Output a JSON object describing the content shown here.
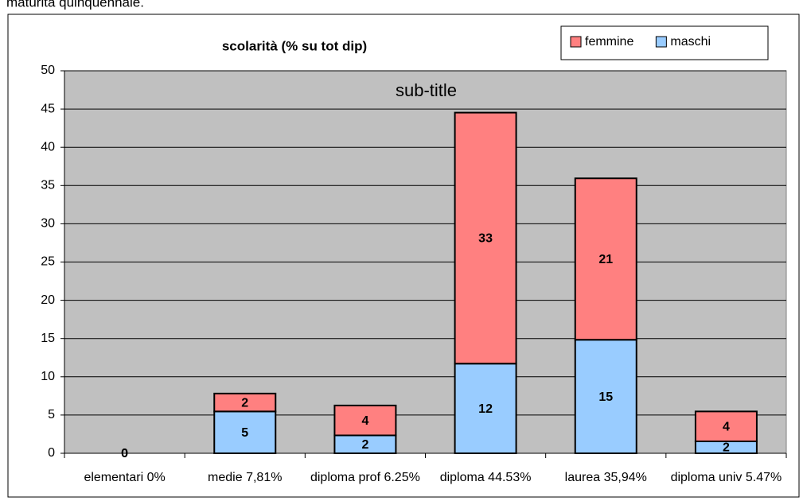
{
  "caption": "maturità quinquennale.",
  "chart_data": {
    "type": "bar",
    "stacked": true,
    "title": "scolarità (% su tot dip)",
    "subtitle": "sub-title",
    "categories": [
      "elementari 0%",
      "medie 7,81%",
      "diploma prof 6.25%",
      "diploma 44.53%",
      "laurea 35,94%",
      "diploma univ 5.47%"
    ],
    "series": [
      {
        "name": "maschi",
        "color": "#99ccff",
        "values": [
          0,
          5.47,
          2.34,
          11.72,
          14.84,
          1.56
        ],
        "value_labels": [
          "0",
          "5",
          "2",
          "12",
          "15",
          "2"
        ]
      },
      {
        "name": "femmine",
        "color": "#ff8080",
        "values": [
          0,
          2.34,
          3.91,
          32.81,
          21.1,
          3.91
        ],
        "value_labels": [
          "0",
          "2",
          "4",
          "33",
          "21",
          "4"
        ]
      }
    ],
    "ylim": [
      0,
      50
    ],
    "yticks": [
      0,
      5,
      10,
      15,
      20,
      25,
      30,
      35,
      40,
      45,
      50
    ],
    "grid": true,
    "plot_background": "#c0c0c0",
    "legend": "top-right"
  }
}
